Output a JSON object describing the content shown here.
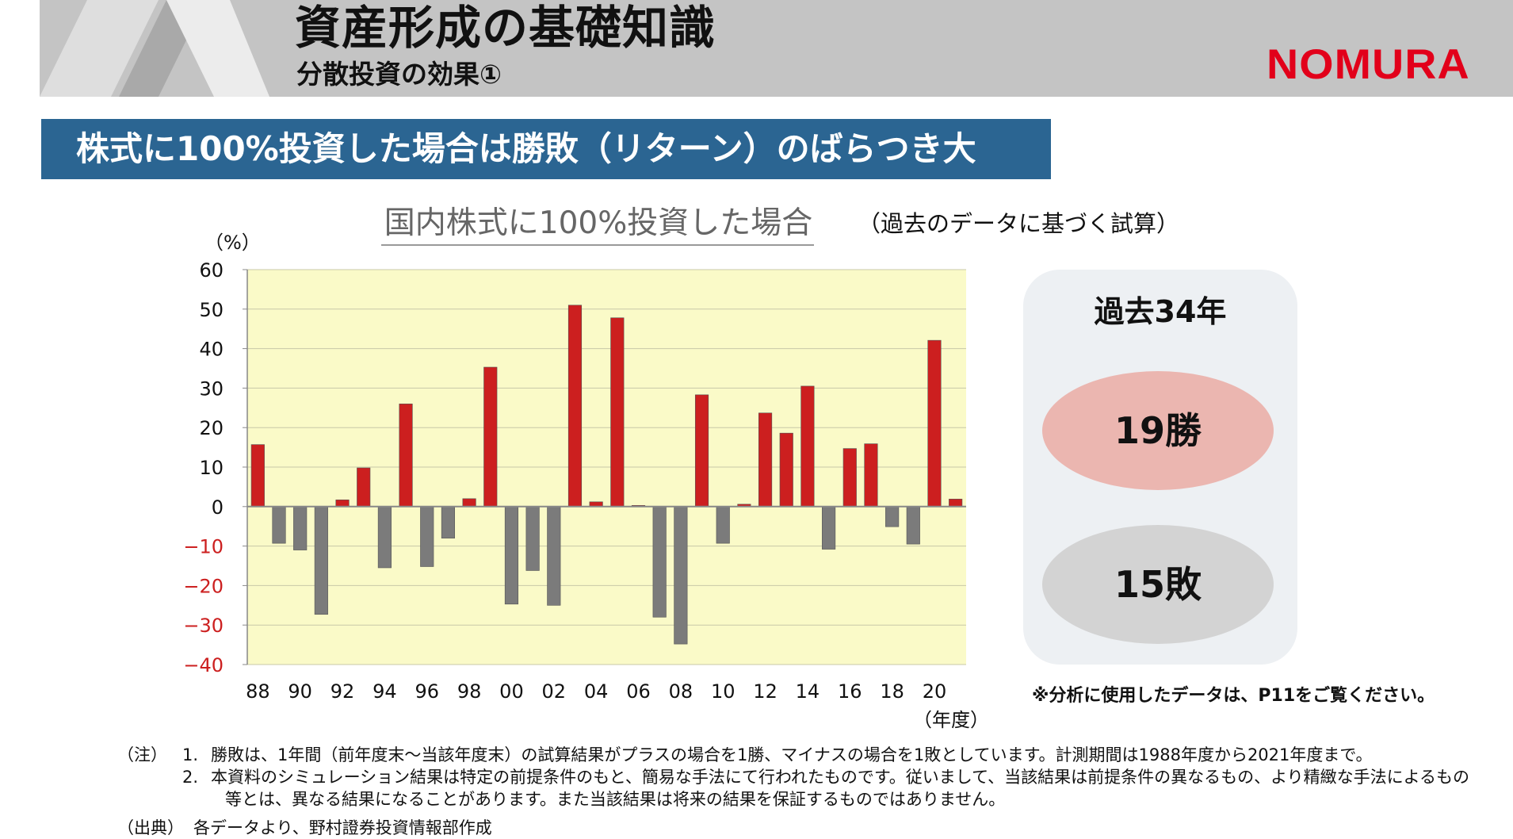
{
  "header": {
    "title": "資産形成の基礎知識",
    "subtitle": "分散投資の効果①",
    "logo_text": "NOMURA",
    "colors": {
      "band": "#c4c4c4",
      "logo": "#e2001a"
    }
  },
  "banner": {
    "text": "株式に100%投資した場合は勝敗（リターン）のばらつき大",
    "color": "#2b6592"
  },
  "chart_title": "国内株式に100%投資した場合",
  "chart_note": "（過去のデータに基づく試算）",
  "chart_data": {
    "type": "bar",
    "title": "国内株式に100%投資した場合",
    "ylabel": "（%）",
    "xlabel": "（年度）",
    "ylim": [
      -40,
      60
    ],
    "yticks": [
      "60",
      "50",
      "40",
      "30",
      "20",
      "10",
      "0",
      "−10",
      "−20",
      "−30",
      "−40"
    ],
    "x_tick_labels": [
      "88",
      "90",
      "92",
      "94",
      "96",
      "98",
      "00",
      "02",
      "04",
      "06",
      "08",
      "10",
      "12",
      "14",
      "16",
      "18",
      "20"
    ],
    "categories": [
      "1988",
      "1989",
      "1990",
      "1991",
      "1992",
      "1993",
      "1994",
      "1995",
      "1996",
      "1997",
      "1998",
      "1999",
      "2000",
      "2001",
      "2002",
      "2003",
      "2004",
      "2005",
      "2006",
      "2007",
      "2008",
      "2009",
      "2010",
      "2011",
      "2012",
      "2013",
      "2014",
      "2015",
      "2016",
      "2017",
      "2018",
      "2019",
      "2020",
      "2021"
    ],
    "values": [
      15.7,
      -9.3,
      -11.0,
      -27.3,
      1.7,
      9.8,
      -15.5,
      26.0,
      -15.2,
      -8.0,
      2.0,
      35.3,
      -24.7,
      -16.2,
      -25.0,
      51.0,
      1.2,
      47.8,
      0.3,
      -28.0,
      -34.8,
      28.3,
      -9.3,
      0.6,
      23.7,
      18.6,
      30.5,
      -10.8,
      14.7,
      15.9,
      -5.1,
      -9.5,
      42.1,
      1.9
    ],
    "colors": {
      "positive": "#cc1f1f",
      "negative": "#7b7b7b",
      "plot_bg": "#fafac8",
      "negative_tick": "#cc1f1f"
    },
    "grid": true
  },
  "summary": {
    "period": "過去34年",
    "wins": "19勝",
    "losses": "15敗"
  },
  "ref_note": "※分析に使用したデータは、P11をご覧ください。",
  "footnotes": {
    "note_label": "（注）",
    "note1_num": "1.",
    "note1": "勝敗は、1年間（前年度末～当該年度末）の試算結果がプラスの場合を1勝、マイナスの場合を1敗としています。計測期間は1988年度から2021年度まで。",
    "note2_num": "2.",
    "note2a": "本資料のシミュレーション結果は特定の前提条件のもと、簡易な手法にて行われたものです。従いまして、当該結果は前提条件の異なるもの、より精緻な手法によるもの",
    "note2b": "等とは、異なる結果になることがあります。また当該結果は将来の結果を保証するものではありません。",
    "source_label": "（出典）",
    "source": "各データより、野村證券投資情報部作成"
  }
}
